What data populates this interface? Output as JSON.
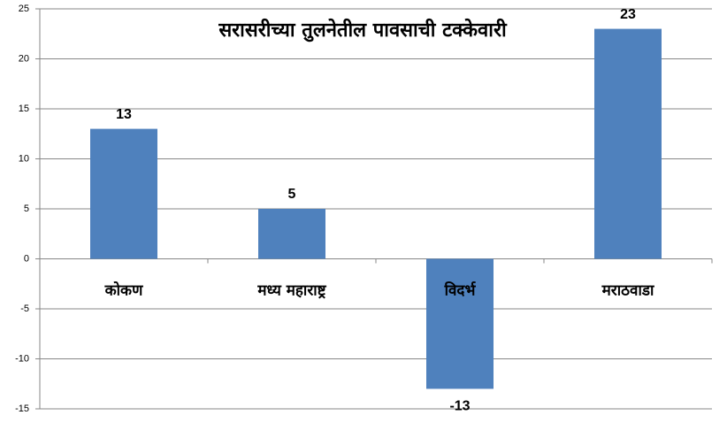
{
  "chart_data": {
    "type": "bar",
    "title": "सरासरीच्या तुलनेतील पावसाची टक्केवारी",
    "categories": [
      "कोकण",
      "मध्य महाराष्ट्र",
      "विदर्भ",
      "मराठवाडा"
    ],
    "values": [
      13,
      5,
      -13,
      23
    ],
    "color": "#4f81bd",
    "ylim": [
      -15,
      25
    ],
    "yticks": [
      -15,
      -10,
      -5,
      0,
      5,
      10,
      15,
      20,
      25
    ],
    "grid": true
  }
}
